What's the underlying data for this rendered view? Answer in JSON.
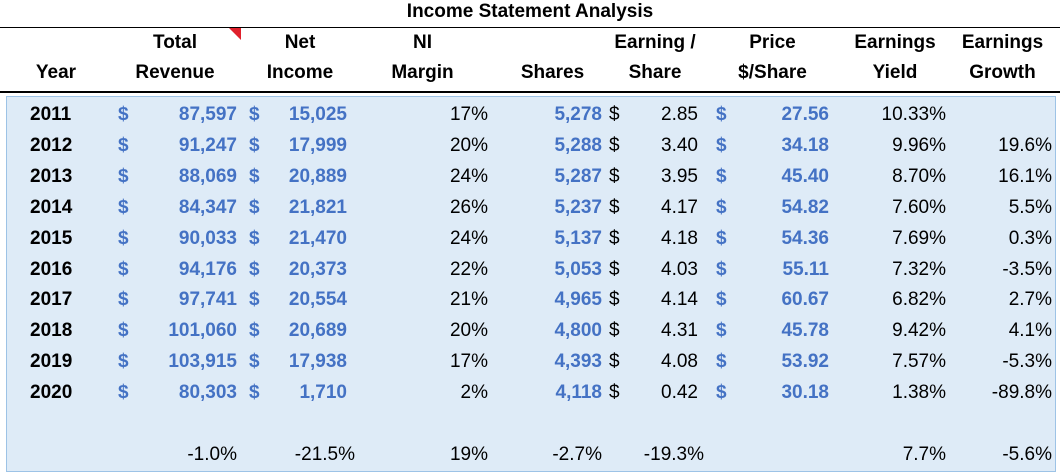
{
  "title": "Income Statement Analysis",
  "headers": {
    "year": [
      "",
      "Year"
    ],
    "revenue": [
      "Total",
      "Revenue"
    ],
    "net_income": [
      "Net",
      "Income"
    ],
    "ni_margin": [
      "NI",
      "Margin"
    ],
    "shares": [
      "",
      "Shares"
    ],
    "eps": [
      "Earning /",
      "Share"
    ],
    "price": [
      "Price",
      "$/Share"
    ],
    "yield": [
      "Earnings",
      "Yield"
    ],
    "growth": [
      "Earnings",
      "Growth"
    ]
  },
  "currency": "$",
  "rows": [
    {
      "year": "2011",
      "revenue": "87,597",
      "net_income": "15,025",
      "ni_margin": "17%",
      "shares": "5,278",
      "eps": "2.85",
      "price": "27.56",
      "yield": "10.33%",
      "growth": ""
    },
    {
      "year": "2012",
      "revenue": "91,247",
      "net_income": "17,999",
      "ni_margin": "20%",
      "shares": "5,288",
      "eps": "3.40",
      "price": "34.18",
      "yield": "9.96%",
      "growth": "19.6%"
    },
    {
      "year": "2013",
      "revenue": "88,069",
      "net_income": "20,889",
      "ni_margin": "24%",
      "shares": "5,287",
      "eps": "3.95",
      "price": "45.40",
      "yield": "8.70%",
      "growth": "16.1%"
    },
    {
      "year": "2014",
      "revenue": "84,347",
      "net_income": "21,821",
      "ni_margin": "26%",
      "shares": "5,237",
      "eps": "4.17",
      "price": "54.82",
      "yield": "7.60%",
      "growth": "5.5%"
    },
    {
      "year": "2015",
      "revenue": "90,033",
      "net_income": "21,470",
      "ni_margin": "24%",
      "shares": "5,137",
      "eps": "4.18",
      "price": "54.36",
      "yield": "7.69%",
      "growth": "0.3%"
    },
    {
      "year": "2016",
      "revenue": "94,176",
      "net_income": "20,373",
      "ni_margin": "22%",
      "shares": "5,053",
      "eps": "4.03",
      "price": "55.11",
      "yield": "7.32%",
      "growth": "-3.5%"
    },
    {
      "year": "2017",
      "revenue": "97,741",
      "net_income": "20,554",
      "ni_margin": "21%",
      "shares": "4,965",
      "eps": "4.14",
      "price": "60.67",
      "yield": "6.82%",
      "growth": "2.7%"
    },
    {
      "year": "2018",
      "revenue": "101,060",
      "net_income": "20,689",
      "ni_margin": "20%",
      "shares": "4,800",
      "eps": "4.31",
      "price": "45.78",
      "yield": "9.42%",
      "growth": "4.1%"
    },
    {
      "year": "2019",
      "revenue": "103,915",
      "net_income": "17,938",
      "ni_margin": "17%",
      "shares": "4,393",
      "eps": "4.08",
      "price": "53.92",
      "yield": "7.57%",
      "growth": "-5.3%"
    },
    {
      "year": "2020",
      "revenue": "80,303",
      "net_income": "1,710",
      "ni_margin": "2%",
      "shares": "4,118",
      "eps": "0.42",
      "price": "30.18",
      "yield": "1.38%",
      "growth": "-89.8%"
    }
  ],
  "summary": {
    "revenue": "-1.0%",
    "net_income": "-21.5%",
    "ni_margin": "19%",
    "shares": "-2.7%",
    "eps": "-19.3%",
    "yield": "7.7%",
    "growth": "-5.6%"
  },
  "colors": {
    "accent_blue": "#4472c4",
    "body_fill": "#deebf7",
    "marker_red": "#e0202c"
  }
}
